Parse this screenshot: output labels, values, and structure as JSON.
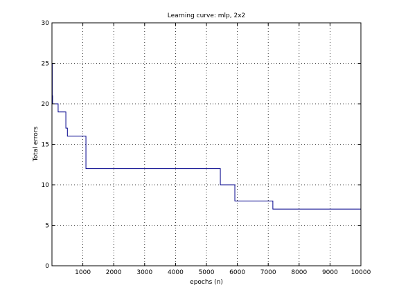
{
  "chart_data": {
    "type": "line",
    "title": "Learning curve: mlp, 2x2",
    "xlabel": "epochs (n)",
    "ylabel": "Total errors",
    "xlim": [
      0,
      10000
    ],
    "ylim": [
      0,
      30
    ],
    "x_ticks": [
      0,
      1000,
      2000,
      3000,
      4000,
      5000,
      6000,
      7000,
      8000,
      9000,
      10000
    ],
    "x_tick_labels": [
      "",
      "1000",
      "2000",
      "3000",
      "4000",
      "5000",
      "6000",
      "7000",
      "8000",
      "9000",
      "10000"
    ],
    "y_ticks": [
      0,
      5,
      10,
      15,
      20,
      25,
      30
    ],
    "y_tick_labels": [
      "0",
      "5",
      "10",
      "15",
      "20",
      "25",
      "30"
    ],
    "grid": true,
    "grid_style": "dotted",
    "step": true,
    "series": [
      {
        "color": "#00008b",
        "x": [
          0,
          10,
          20,
          60,
          200,
          450,
          500,
          550,
          1100,
          5450,
          5920,
          7150,
          10000
        ],
        "y": [
          25,
          21,
          20,
          20,
          19,
          17,
          16,
          16,
          12,
          10,
          8,
          7,
          7
        ]
      }
    ]
  }
}
